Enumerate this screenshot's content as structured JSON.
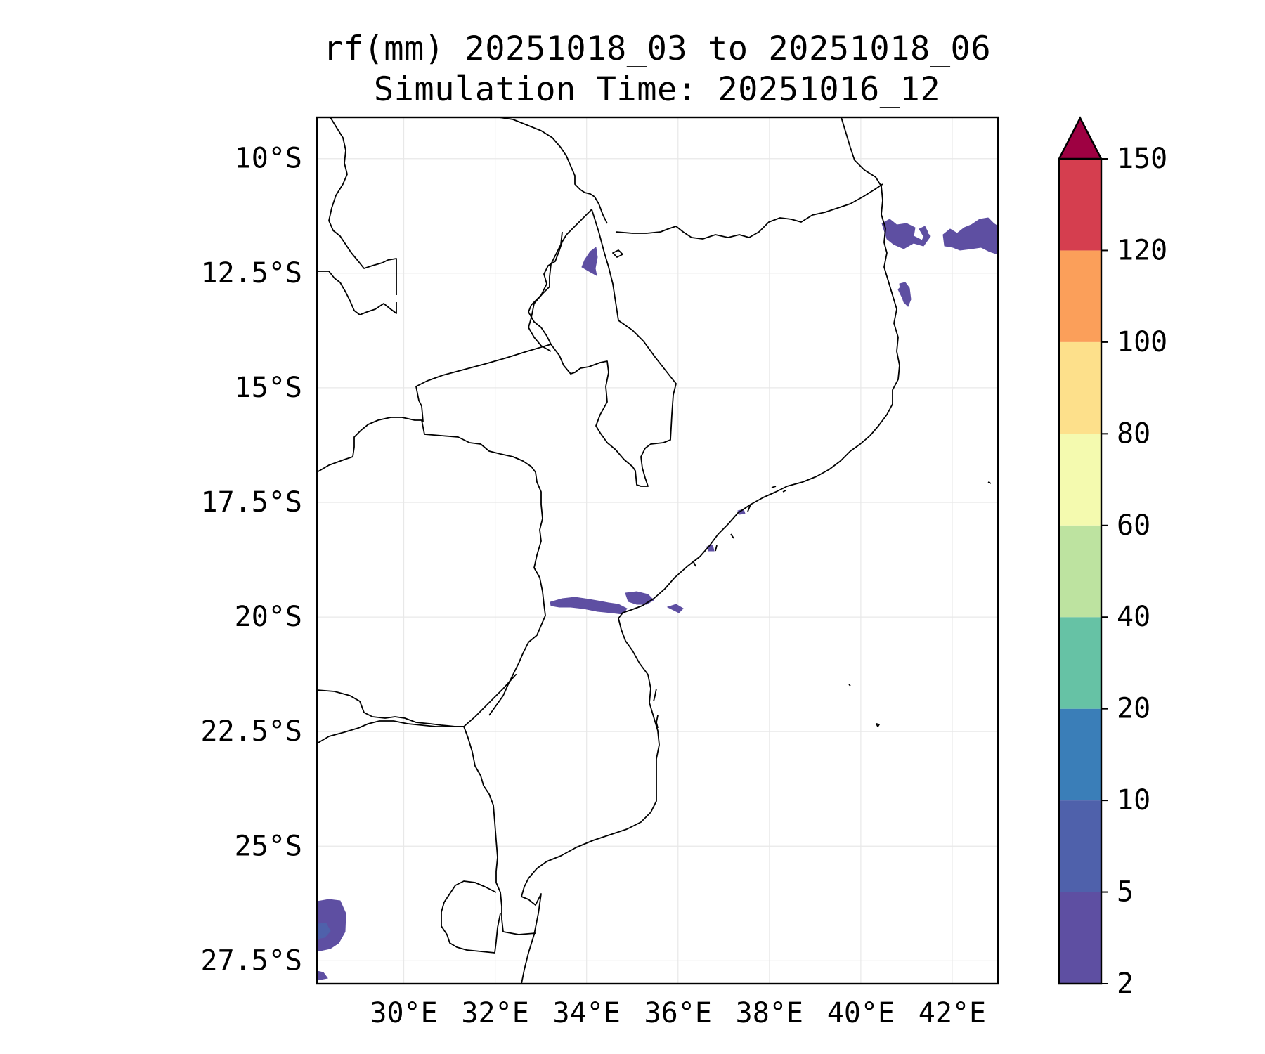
{
  "title": {
    "line1": "rf(mm) 20251018_03 to 20251018_06",
    "line2": "Simulation Time: 20251016_12"
  },
  "map": {
    "lon_range": [
      28.1,
      43.0
    ],
    "lat_range": [
      -28.0,
      -9.1
    ],
    "x_ticks": [
      {
        "value": 30,
        "label": "30°E"
      },
      {
        "value": 32,
        "label": "32°E"
      },
      {
        "value": 34,
        "label": "34°E"
      },
      {
        "value": 36,
        "label": "36°E"
      },
      {
        "value": 38,
        "label": "38°E"
      },
      {
        "value": 40,
        "label": "40°E"
      },
      {
        "value": 42,
        "label": "42°E"
      }
    ],
    "y_ticks": [
      {
        "value": -10,
        "label": "10°S"
      },
      {
        "value": -12.5,
        "label": "12.5°S"
      },
      {
        "value": -15,
        "label": "15°S"
      },
      {
        "value": -17.5,
        "label": "17.5°S"
      },
      {
        "value": -20,
        "label": "20°S"
      },
      {
        "value": -22.5,
        "label": "22.5°S"
      },
      {
        "value": -25,
        "label": "25°S"
      },
      {
        "value": -27.5,
        "label": "27.5°S"
      }
    ],
    "grid": true
  },
  "colorbar": {
    "levels": [
      "2",
      "5",
      "10",
      "20",
      "40",
      "60",
      "80",
      "100",
      "120",
      "150"
    ],
    "colors": [
      "#5e4fa2",
      "#4f61ab",
      "#3a7eb8",
      "#66c2a5",
      "#bde3a0",
      "#f4faaf",
      "#fde08b",
      "#fb9f5a",
      "#d53e4f"
    ],
    "extend_color": "#9e0142",
    "extend": "max"
  },
  "colors": {
    "coast": "#000000",
    "rain_light": "#5e4fa2",
    "rain_medium": "#4f61ab",
    "grid": "#e8e8e8"
  }
}
